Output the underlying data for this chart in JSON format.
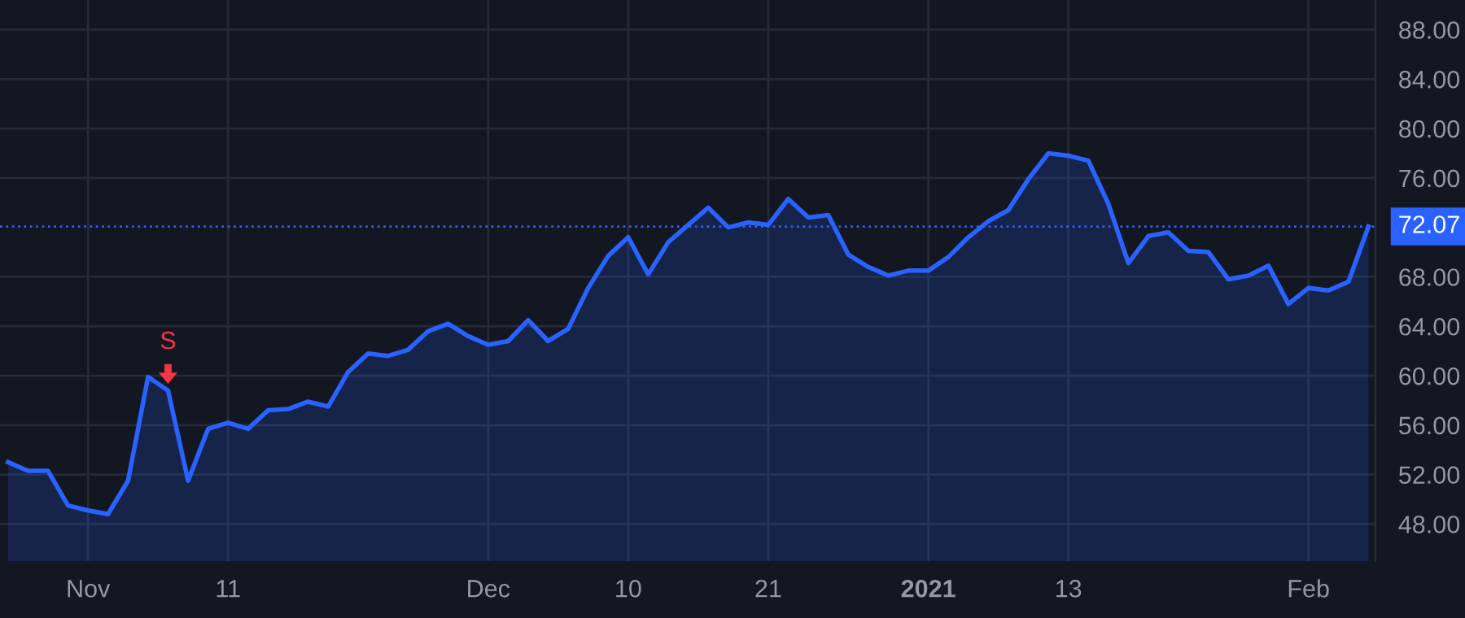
{
  "chart_data": {
    "type": "area",
    "categories": [
      null,
      null,
      null,
      null,
      "Nov",
      null,
      null,
      null,
      null,
      null,
      null,
      "11",
      null,
      null,
      null,
      null,
      null,
      null,
      null,
      null,
      null,
      null,
      null,
      null,
      "Dec",
      null,
      null,
      null,
      null,
      null,
      null,
      "10",
      null,
      null,
      null,
      null,
      null,
      null,
      "21",
      null,
      null,
      null,
      null,
      null,
      null,
      null,
      "2021",
      null,
      null,
      null,
      null,
      null,
      null,
      "13",
      null,
      null,
      null,
      null,
      null,
      null,
      null,
      null,
      null,
      null,
      null,
      "Feb",
      null,
      null,
      null
    ],
    "series": [
      {
        "color": "#2962ff",
        "values": [
          53.0,
          52.3,
          52.3,
          49.5,
          49.1,
          48.8,
          51.5,
          59.9,
          58.8,
          51.5,
          55.7,
          56.2,
          55.7,
          57.2,
          57.3,
          57.9,
          57.5,
          60.3,
          61.8,
          61.6,
          62.1,
          63.6,
          64.2,
          63.2,
          62.5,
          62.8,
          64.5,
          62.8,
          63.8,
          67.1,
          69.7,
          71.2,
          68.2,
          70.8,
          72.2,
          73.6,
          72.0,
          72.4,
          72.2,
          74.3,
          72.8,
          73.0,
          69.8,
          68.8,
          68.1,
          68.5,
          68.5,
          69.6,
          71.2,
          72.5,
          73.4,
          75.9,
          78.0,
          77.8,
          77.4,
          73.9,
          69.1,
          71.3,
          71.6,
          70.1,
          70.0,
          67.8,
          68.1,
          68.9,
          65.8,
          67.1,
          66.9,
          67.6,
          72.07
        ]
      }
    ],
    "ylim": [
      45,
      90.4
    ],
    "yticks": [
      {
        "value": 48,
        "label": "48.00"
      },
      {
        "value": 52,
        "label": "52.00"
      },
      {
        "value": 56,
        "label": "56.00"
      },
      {
        "value": 60,
        "label": "60.00"
      },
      {
        "value": 64,
        "label": "64.00"
      },
      {
        "value": 68,
        "label": "68.00"
      },
      {
        "value": 76,
        "label": "76.00"
      },
      {
        "value": 80,
        "label": "80.00"
      },
      {
        "value": 84,
        "label": "84.00"
      },
      {
        "value": 88,
        "label": "88.00"
      }
    ],
    "ref_lines": [
      {
        "axis": "y",
        "value": 72.07,
        "label": "72.07",
        "color": "#2962ff",
        "line_style": "dotted"
      }
    ],
    "annotations": [
      {
        "text": "S",
        "y": 58.8
      }
    ],
    "grid": true,
    "line_style": "solid",
    "marker": "none"
  }
}
